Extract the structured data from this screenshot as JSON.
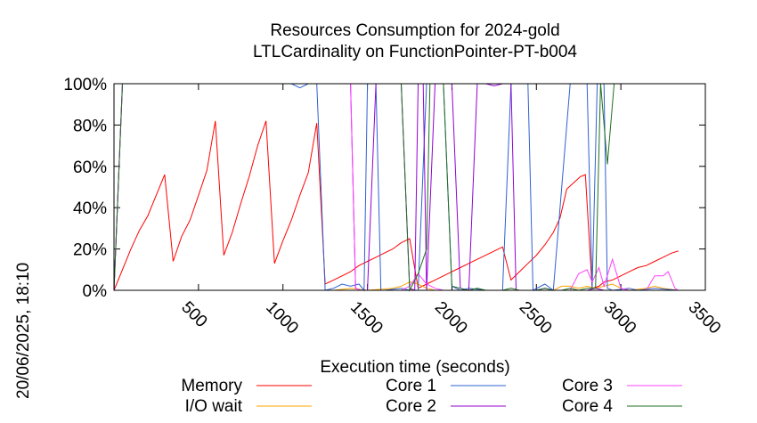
{
  "chart_data": {
    "type": "line",
    "title": "Resources Consumption for 2024-gold",
    "subtitle": "LTLCardinality on FunctionPointer-PT-b004",
    "xlabel": "Execution time (seconds)",
    "ylabel": "",
    "xlim": [
      0,
      3500
    ],
    "ylim": [
      0,
      100
    ],
    "x_ticks": [
      500,
      1000,
      1500,
      2000,
      2500,
      3000,
      3500
    ],
    "y_ticks": [
      0,
      20,
      40,
      60,
      80,
      100
    ],
    "y_tick_labels": [
      "0%",
      "20%",
      "40%",
      "60%",
      "80%",
      "100%"
    ],
    "grid": false,
    "legend_position": "bottom",
    "timestamp": "20/06/2025, 18:10",
    "series": [
      {
        "name": "Memory",
        "color": "#ff0000",
        "points": [
          [
            0,
            0
          ],
          [
            50,
            10
          ],
          [
            100,
            20
          ],
          [
            150,
            29
          ],
          [
            200,
            36
          ],
          [
            250,
            46
          ],
          [
            300,
            56
          ],
          [
            350,
            14
          ],
          [
            400,
            26
          ],
          [
            450,
            34
          ],
          [
            500,
            46
          ],
          [
            550,
            58
          ],
          [
            600,
            82
          ],
          [
            650,
            17
          ],
          [
            700,
            28
          ],
          [
            750,
            42
          ],
          [
            800,
            55
          ],
          [
            850,
            70
          ],
          [
            900,
            82
          ],
          [
            950,
            13
          ],
          [
            1000,
            24
          ],
          [
            1050,
            34
          ],
          [
            1100,
            46
          ],
          [
            1150,
            57
          ],
          [
            1200,
            81
          ],
          [
            1250,
            3
          ],
          [
            1300,
            5
          ],
          [
            1350,
            7
          ],
          [
            1400,
            9
          ],
          [
            1450,
            12
          ],
          [
            1500,
            14
          ],
          [
            1550,
            16
          ],
          [
            1600,
            18
          ],
          [
            1650,
            20
          ],
          [
            1700,
            23
          ],
          [
            1750,
            25
          ],
          [
            1800,
            1
          ],
          [
            1850,
            3
          ],
          [
            1900,
            5
          ],
          [
            1950,
            7
          ],
          [
            2000,
            9
          ],
          [
            2050,
            11
          ],
          [
            2100,
            13
          ],
          [
            2150,
            15
          ],
          [
            2200,
            17
          ],
          [
            2250,
            19
          ],
          [
            2300,
            21
          ],
          [
            2350,
            5
          ],
          [
            2400,
            9
          ],
          [
            2450,
            13
          ],
          [
            2500,
            17
          ],
          [
            2550,
            22
          ],
          [
            2600,
            28
          ],
          [
            2640,
            35
          ],
          [
            2680,
            49
          ],
          [
            2720,
            52
          ],
          [
            2760,
            55
          ],
          [
            2790,
            56
          ],
          [
            2830,
            1
          ],
          [
            2870,
            2
          ],
          [
            2900,
            4
          ],
          [
            2950,
            5
          ],
          [
            3000,
            7
          ],
          [
            3050,
            9
          ],
          [
            3100,
            11
          ],
          [
            3150,
            12
          ],
          [
            3200,
            14
          ],
          [
            3250,
            16
          ],
          [
            3300,
            18
          ],
          [
            3340,
            19
          ]
        ]
      },
      {
        "name": "I/O wait",
        "color": "#ffa500",
        "points": [
          [
            0,
            0
          ],
          [
            1300,
            0
          ],
          [
            1400,
            1
          ],
          [
            1500,
            0
          ],
          [
            1650,
            1
          ],
          [
            1700,
            2
          ],
          [
            1750,
            4
          ],
          [
            1800,
            3
          ],
          [
            1850,
            1
          ],
          [
            1900,
            0
          ],
          [
            2600,
            0
          ],
          [
            2650,
            2
          ],
          [
            2700,
            2
          ],
          [
            2750,
            1
          ],
          [
            2800,
            2
          ],
          [
            2850,
            1
          ],
          [
            2900,
            2
          ],
          [
            2950,
            3
          ],
          [
            3000,
            1
          ],
          [
            3050,
            0
          ],
          [
            3150,
            1
          ],
          [
            3200,
            2
          ],
          [
            3250,
            1
          ],
          [
            3340,
            0
          ]
        ]
      },
      {
        "name": "Core 1",
        "color": "#3060d0",
        "points": [
          [
            0,
            0
          ],
          [
            50,
            100
          ],
          [
            1050,
            100
          ],
          [
            1100,
            98
          ],
          [
            1150,
            100
          ],
          [
            1200,
            100
          ],
          [
            1250,
            0
          ],
          [
            1300,
            1
          ],
          [
            1350,
            3
          ],
          [
            1400,
            2
          ],
          [
            1450,
            3
          ],
          [
            1480,
            0
          ],
          [
            1500,
            100
          ],
          [
            1550,
            100
          ],
          [
            1580,
            0
          ],
          [
            1600,
            0
          ],
          [
            1700,
            1
          ],
          [
            1750,
            0
          ],
          [
            1800,
            0
          ],
          [
            1850,
            100
          ],
          [
            1900,
            100
          ],
          [
            1950,
            100
          ],
          [
            2000,
            2
          ],
          [
            2050,
            0
          ],
          [
            2100,
            1
          ],
          [
            2200,
            0
          ],
          [
            2300,
            0
          ],
          [
            2350,
            100
          ],
          [
            2400,
            100
          ],
          [
            2450,
            100
          ],
          [
            2480,
            0
          ],
          [
            2550,
            3
          ],
          [
            2600,
            0
          ],
          [
            2700,
            100
          ],
          [
            2750,
            100
          ],
          [
            2800,
            100
          ],
          [
            2830,
            1
          ],
          [
            2860,
            100
          ],
          [
            2900,
            100
          ],
          [
            2920,
            1
          ],
          [
            2950,
            0
          ],
          [
            3050,
            1
          ],
          [
            3100,
            0
          ],
          [
            3200,
            1
          ],
          [
            3340,
            0
          ]
        ]
      },
      {
        "name": "Core 2",
        "color": "#9400d3",
        "points": [
          [
            0,
            0
          ],
          [
            50,
            100
          ],
          [
            1200,
            100
          ],
          [
            1250,
            100
          ],
          [
            1300,
            100
          ],
          [
            1350,
            100
          ],
          [
            1400,
            100
          ],
          [
            1430,
            1
          ],
          [
            1460,
            0
          ],
          [
            1500,
            0
          ],
          [
            1550,
            100
          ],
          [
            1600,
            100
          ],
          [
            1650,
            100
          ],
          [
            1700,
            100
          ],
          [
            1750,
            1
          ],
          [
            1780,
            0
          ],
          [
            1800,
            100
          ],
          [
            1830,
            100
          ],
          [
            1850,
            0
          ],
          [
            1900,
            100
          ],
          [
            1950,
            100
          ],
          [
            2000,
            100
          ],
          [
            2050,
            1
          ],
          [
            2100,
            0
          ],
          [
            2150,
            100
          ],
          [
            2200,
            100
          ],
          [
            2250,
            99
          ],
          [
            2300,
            100
          ],
          [
            2350,
            100
          ],
          [
            2380,
            0
          ],
          [
            2450,
            0
          ],
          [
            2500,
            0
          ],
          [
            2550,
            1
          ],
          [
            2600,
            0
          ],
          [
            2700,
            0
          ],
          [
            2800,
            0
          ],
          [
            2850,
            1
          ],
          [
            2900,
            0
          ],
          [
            3340,
            0
          ]
        ]
      },
      {
        "name": "Core 3",
        "color": "#ff40ff",
        "points": [
          [
            0,
            0
          ],
          [
            50,
            100
          ],
          [
            1200,
            100
          ],
          [
            1250,
            100
          ],
          [
            1300,
            100
          ],
          [
            1350,
            100
          ],
          [
            1400,
            100
          ],
          [
            1430,
            1
          ],
          [
            1460,
            0
          ],
          [
            1500,
            0
          ],
          [
            1700,
            0
          ],
          [
            1750,
            2
          ],
          [
            1800,
            8
          ],
          [
            1850,
            3
          ],
          [
            1900,
            1
          ],
          [
            1950,
            0
          ],
          [
            2700,
            0
          ],
          [
            2750,
            8
          ],
          [
            2800,
            10
          ],
          [
            2830,
            4
          ],
          [
            2870,
            11
          ],
          [
            2900,
            2
          ],
          [
            2950,
            15
          ],
          [
            3000,
            1
          ],
          [
            3050,
            0
          ],
          [
            3150,
            0
          ],
          [
            3200,
            7
          ],
          [
            3250,
            7
          ],
          [
            3280,
            9
          ],
          [
            3320,
            1
          ],
          [
            3340,
            0
          ]
        ]
      },
      {
        "name": "Core 4",
        "color": "#207020",
        "points": [
          [
            0,
            0
          ],
          [
            50,
            100
          ],
          [
            1200,
            100
          ],
          [
            1250,
            100
          ],
          [
            1500,
            100
          ],
          [
            1550,
            100
          ],
          [
            1600,
            100
          ],
          [
            1650,
            100
          ],
          [
            1700,
            100
          ],
          [
            1750,
            0
          ],
          [
            1800,
            8
          ],
          [
            1850,
            20
          ],
          [
            1870,
            100
          ],
          [
            1900,
            100
          ],
          [
            1950,
            100
          ],
          [
            2000,
            2
          ],
          [
            2050,
            1
          ],
          [
            2100,
            0
          ],
          [
            2150,
            1
          ],
          [
            2200,
            0
          ],
          [
            2300,
            0
          ],
          [
            2350,
            1
          ],
          [
            2400,
            0
          ],
          [
            2500,
            0
          ],
          [
            2550,
            1
          ],
          [
            2600,
            0
          ],
          [
            2650,
            0
          ],
          [
            2700,
            1
          ],
          [
            2750,
            0
          ],
          [
            2800,
            1
          ],
          [
            2850,
            1
          ],
          [
            2880,
            100
          ],
          [
            2920,
            61
          ],
          [
            2960,
            100
          ],
          [
            3000,
            100
          ],
          [
            3340,
            100
          ]
        ]
      }
    ]
  }
}
